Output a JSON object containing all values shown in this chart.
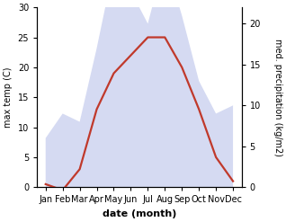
{
  "months": [
    "Jan",
    "Feb",
    "Mar",
    "Apr",
    "May",
    "Jun",
    "Jul",
    "Aug",
    "Sep",
    "Oct",
    "Nov",
    "Dec"
  ],
  "month_indices": [
    0,
    1,
    2,
    3,
    4,
    5,
    6,
    7,
    8,
    9,
    10,
    11
  ],
  "temperature": [
    0.5,
    -0.5,
    3.0,
    13.0,
    19.0,
    22.0,
    25.0,
    25.0,
    20.0,
    13.0,
    5.0,
    1.0
  ],
  "precipitation": [
    6.0,
    9.0,
    8.0,
    17.0,
    27.0,
    24.0,
    20.0,
    28.0,
    21.0,
    13.0,
    9.0,
    10.0
  ],
  "temp_ylim": [
    0,
    30
  ],
  "precip_ylim": [
    0,
    22
  ],
  "precip_color_fill": "#b3bce8",
  "temp_line_color": "#c0392b",
  "xlabel": "date (month)",
  "ylabel_left": "max temp (C)",
  "ylabel_right": "med. precipitation (kg/m2)",
  "right_yticks": [
    0,
    5,
    10,
    15,
    20
  ],
  "left_yticks": [
    0,
    5,
    10,
    15,
    20,
    25,
    30
  ],
  "fill_alpha": 0.55,
  "temp_linewidth": 1.6
}
